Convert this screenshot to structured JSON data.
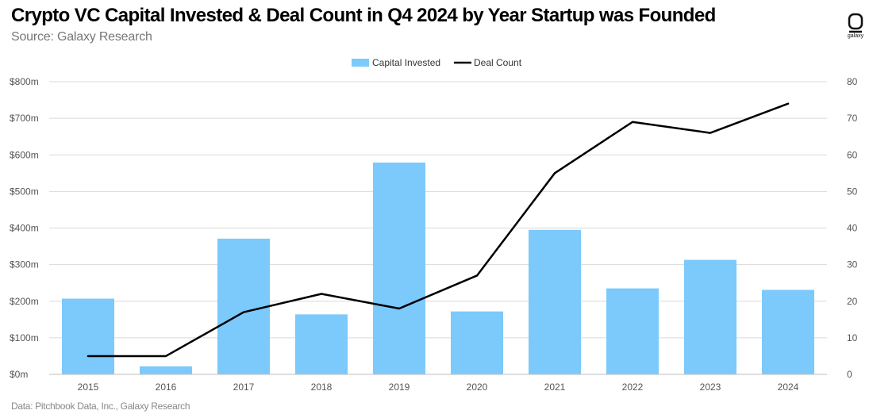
{
  "header": {
    "title": "Crypto VC Capital Invested & Deal Count in Q4 2024 by Year Startup was Founded",
    "subtitle": "Source: Galaxy Research"
  },
  "footer": {
    "note": "Data: Pitchbook Data, Inc., Galaxy Research"
  },
  "logo": {
    "icon": "galaxy-logo-icon",
    "label": "galaxy"
  },
  "colors": {
    "bar": "#7cc9fb",
    "line": "#000000",
    "grid": "#d9d9d9",
    "axis_text": "#555555"
  },
  "chart_data": {
    "type": "bar",
    "title": "Crypto VC Capital Invested & Deal Count in Q4 2024 by Year Startup was Founded",
    "xlabel": "",
    "ylabel": "",
    "categories": [
      "2015",
      "2016",
      "2017",
      "2018",
      "2019",
      "2020",
      "2021",
      "2022",
      "2023",
      "2024"
    ],
    "series": [
      {
        "name": "Capital Invested",
        "type": "bar",
        "axis": "left",
        "values": [
          207,
          22,
          371,
          164,
          579,
          172,
          395,
          235,
          313,
          231
        ]
      },
      {
        "name": "Deal Count",
        "type": "line",
        "axis": "right",
        "values": [
          5,
          5,
          17,
          22,
          18,
          27,
          55,
          69,
          66,
          74
        ]
      }
    ],
    "left_axis": {
      "ylim": [
        0,
        800
      ],
      "ticks": [
        0,
        100,
        200,
        300,
        400,
        500,
        600,
        700,
        800
      ],
      "tick_labels": [
        "$0m",
        "$100m",
        "$200m",
        "$300m",
        "$400m",
        "$500m",
        "$600m",
        "$700m",
        "$800m"
      ]
    },
    "right_axis": {
      "ylim": [
        0,
        80
      ],
      "ticks": [
        0,
        10,
        20,
        30,
        40,
        50,
        60,
        70,
        80
      ],
      "tick_labels": [
        "0",
        "10",
        "20",
        "30",
        "40",
        "50",
        "60",
        "70",
        "80"
      ]
    },
    "grid": true,
    "legend": {
      "position": "top-center",
      "entries": [
        "Capital Invested",
        "Deal Count"
      ]
    }
  }
}
